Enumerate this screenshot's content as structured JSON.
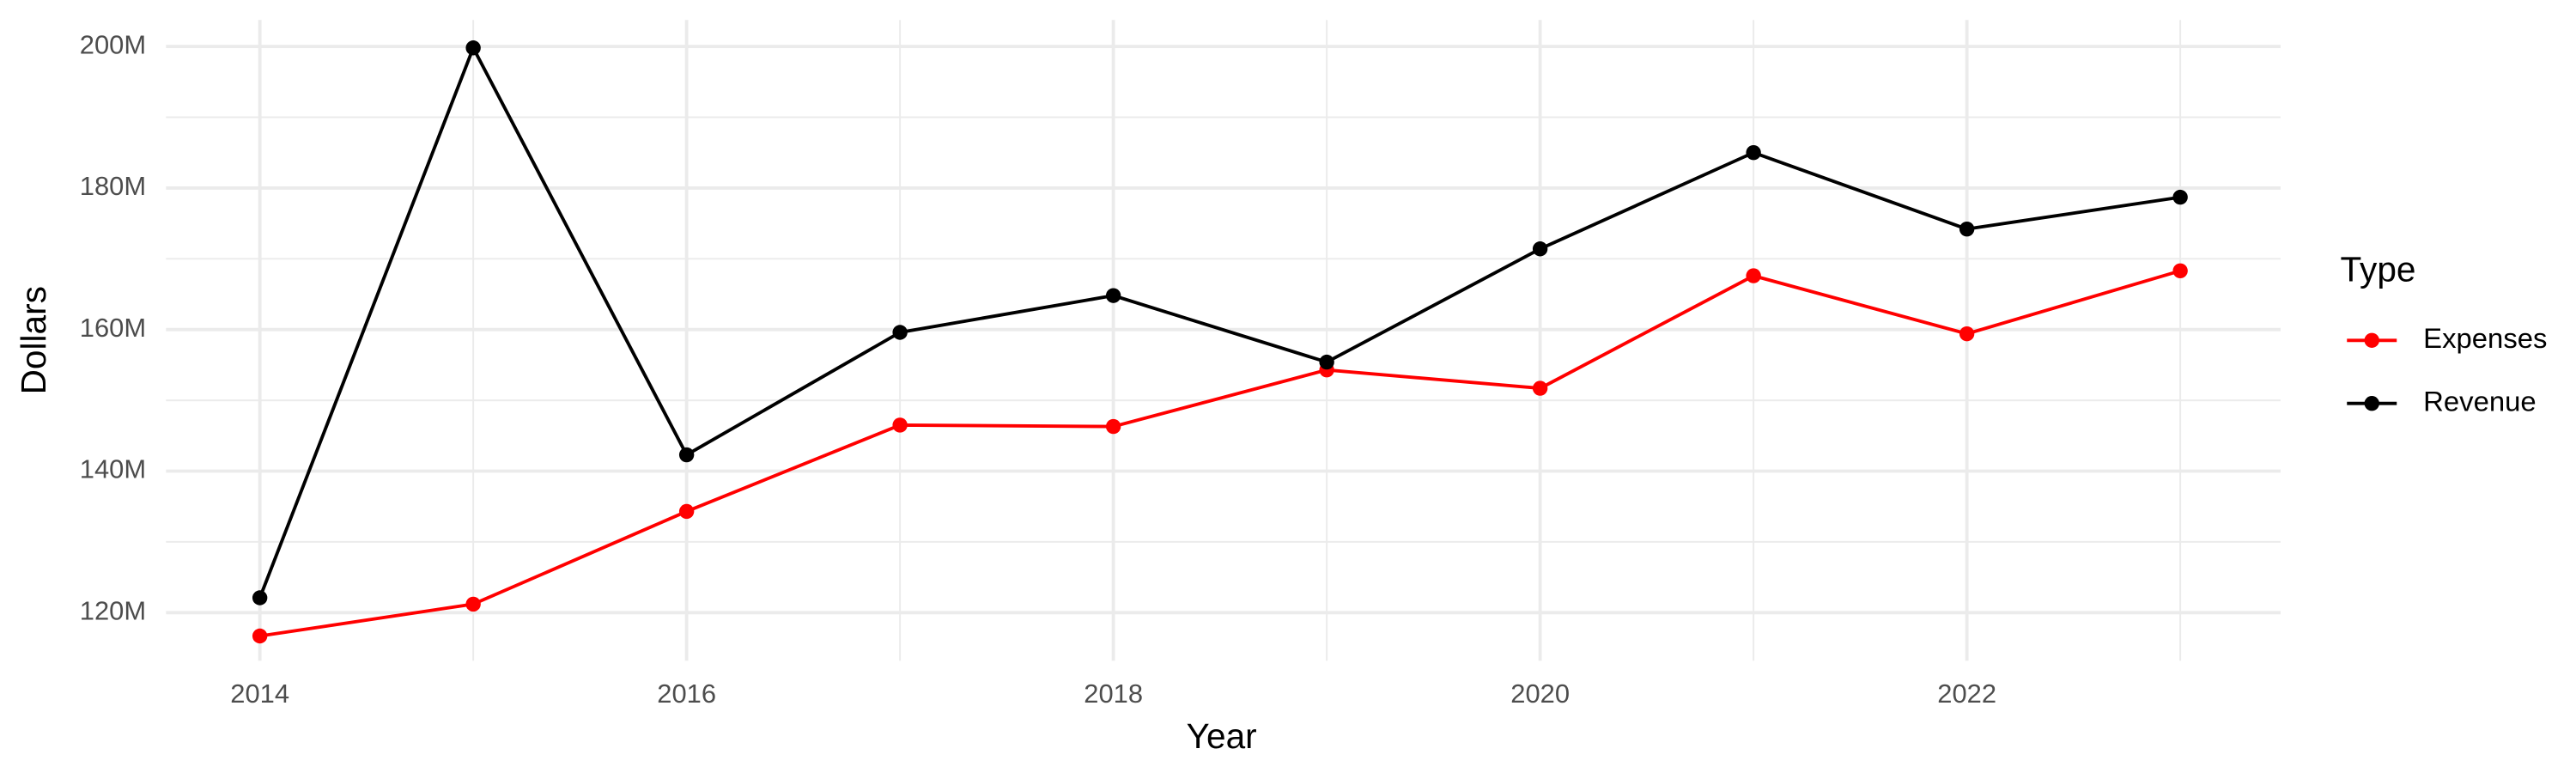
{
  "chart_data": {
    "type": "line",
    "x_label": "Year",
    "y_label": "Dollars",
    "legend_title": "Type",
    "legend_position": "right",
    "grid": true,
    "x": [
      2014,
      2015,
      2016,
      2017,
      2018,
      2019,
      2020,
      2021,
      2022,
      2023
    ],
    "xlim": [
      2013.56,
      2023.47
    ],
    "xticks": [
      2014,
      2016,
      2018,
      2020,
      2022
    ],
    "ylim": [
      113200000,
      203750000
    ],
    "yticks": [
      {
        "value": 120000000,
        "label": "120M"
      },
      {
        "value": 140000000,
        "label": "140M"
      },
      {
        "value": 160000000,
        "label": "160M"
      },
      {
        "value": 180000000,
        "label": "180M"
      },
      {
        "value": 200000000,
        "label": "200M"
      }
    ],
    "series": [
      {
        "name": "Expenses",
        "color": "#ff0000",
        "values": [
          116700000,
          121200000,
          134300000,
          146500000,
          146300000,
          154300000,
          151700000,
          167600000,
          159400000,
          168300000
        ]
      },
      {
        "name": "Revenue",
        "color": "#000000",
        "values": [
          122100000,
          199800000,
          142300000,
          159600000,
          164800000,
          155400000,
          171400000,
          185000000,
          174200000,
          178700000
        ]
      }
    ]
  }
}
